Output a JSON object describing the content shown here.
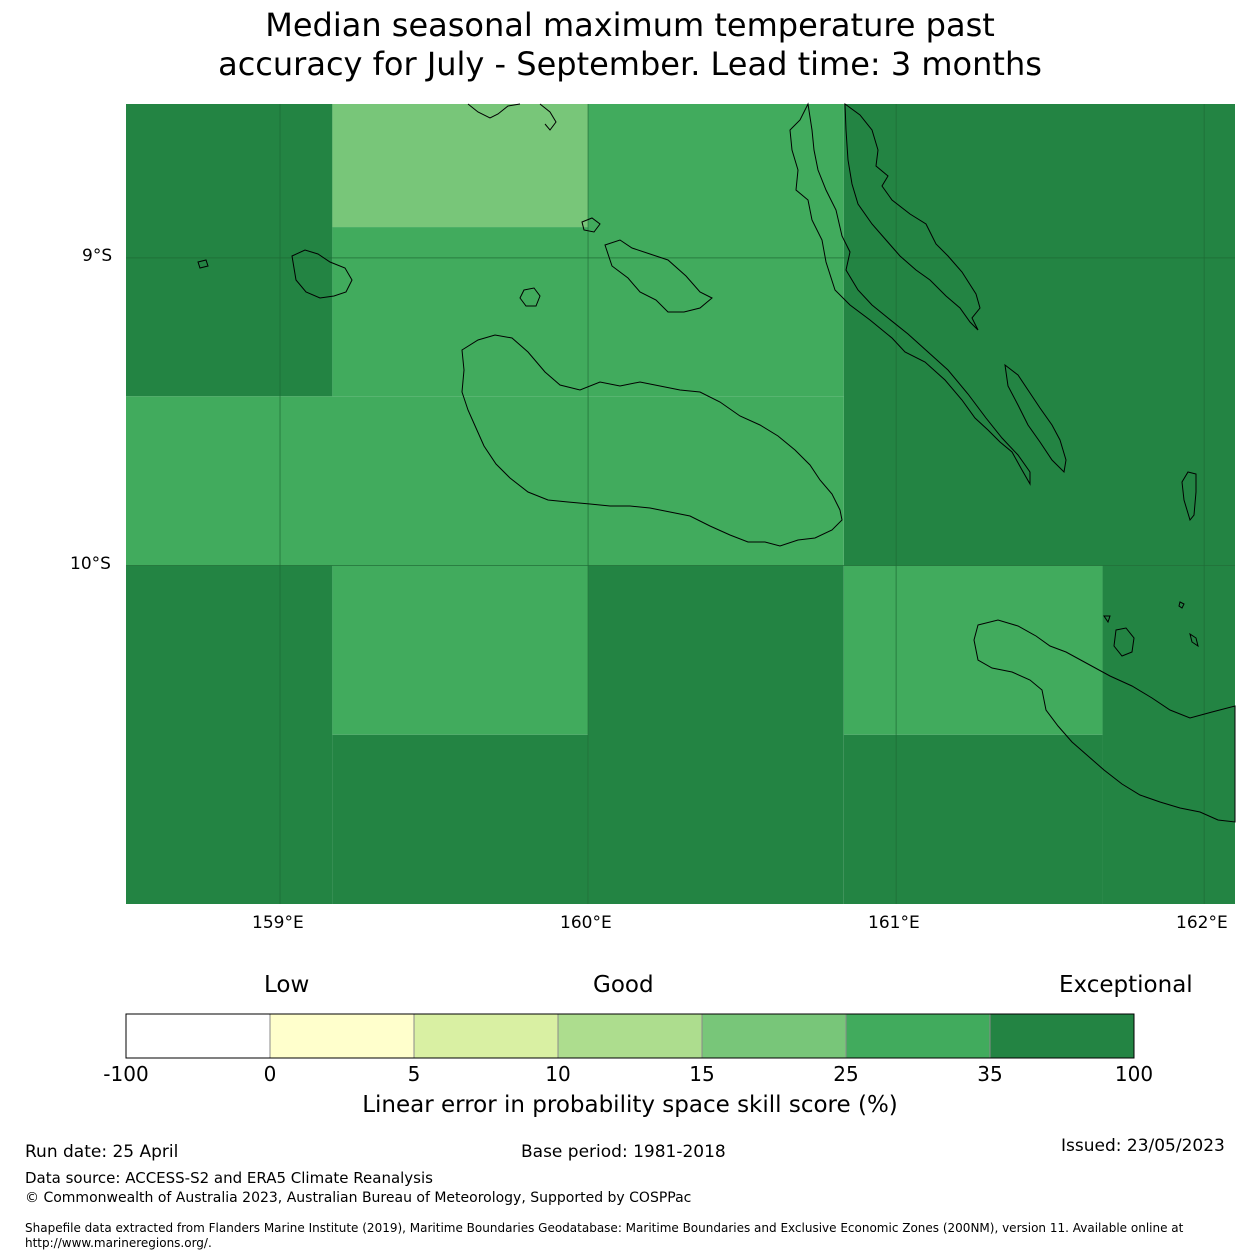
{
  "title": {
    "line1": "Median seasonal maximum temperature past",
    "line2": "accuracy for July - September. Lead time: 3 months"
  },
  "map": {
    "lon_range": [
      158.5,
      162.1
    ],
    "lat_range": [
      -11.1,
      -8.5
    ],
    "lon_ticks": [
      {
        "value": 159,
        "label": "159°E"
      },
      {
        "value": 160,
        "label": "160°E"
      },
      {
        "value": 161,
        "label": "161°E"
      },
      {
        "value": 162,
        "label": "162°E"
      }
    ],
    "lat_ticks": [
      {
        "value": -9,
        "label": "9°S"
      },
      {
        "value": -10,
        "label": "10°S"
      }
    ],
    "grid_cells": [
      {
        "lon0": 158.5,
        "lon1": 159.17,
        "lat0": -9.45,
        "lat1": -8.5,
        "category": "35 to 100"
      },
      {
        "lon0": 159.17,
        "lon1": 160.0,
        "lat0": -8.9,
        "lat1": -8.5,
        "category": "15 to 25"
      },
      {
        "lon0": 160.0,
        "lon1": 160.83,
        "lat0": -9.45,
        "lat1": -8.5,
        "category": "25 to 35"
      },
      {
        "lon0": 159.17,
        "lon1": 160.0,
        "lat0": -9.45,
        "lat1": -8.9,
        "category": "25 to 35"
      },
      {
        "lon0": 160.83,
        "lon1": 162.1,
        "lat0": -10.0,
        "lat1": -8.5,
        "category": "35 to 100"
      },
      {
        "lon0": 158.5,
        "lon1": 160.83,
        "lat0": -10.0,
        "lat1": -9.45,
        "category": "25 to 35"
      },
      {
        "lon0": 158.5,
        "lon1": 159.17,
        "lat0": -11.1,
        "lat1": -10.0,
        "category": "35 to 100"
      },
      {
        "lon0": 159.17,
        "lon1": 160.0,
        "lat0": -10.55,
        "lat1": -10.0,
        "category": "25 to 35"
      },
      {
        "lon0": 159.17,
        "lon1": 160.0,
        "lat0": -11.1,
        "lat1": -10.55,
        "category": "35 to 100"
      },
      {
        "lon0": 160.0,
        "lon1": 160.83,
        "lat0": -11.1,
        "lat1": -10.0,
        "category": "35 to 100"
      },
      {
        "lon0": 160.83,
        "lon1": 161.67,
        "lat0": -10.55,
        "lat1": -10.0,
        "category": "25 to 35"
      },
      {
        "lon0": 160.83,
        "lon1": 161.67,
        "lat0": -11.1,
        "lat1": -10.55,
        "category": "35 to 100"
      },
      {
        "lon0": 161.67,
        "lon1": 162.1,
        "lat0": -11.1,
        "lat1": -10.0,
        "category": "35 to 100"
      }
    ]
  },
  "legend": {
    "headings": {
      "low": "Low",
      "good": "Good",
      "exceptional": "Exceptional"
    },
    "bins": [
      {
        "from": -100,
        "to": 0,
        "color": "#ffffff"
      },
      {
        "from": 0,
        "to": 5,
        "color": "#ffffcc"
      },
      {
        "from": 5,
        "to": 10,
        "color": "#d9f0a3"
      },
      {
        "from": 10,
        "to": 15,
        "color": "#addd8e"
      },
      {
        "from": 15,
        "to": 25,
        "color": "#78c679"
      },
      {
        "from": 25,
        "to": 35,
        "color": "#41ab5d"
      },
      {
        "from": 35,
        "to": 100,
        "color": "#238443"
      }
    ],
    "tick_labels": [
      "-100",
      "0",
      "5",
      "10",
      "15",
      "25",
      "35",
      "100"
    ],
    "axis_label": "Linear error in probability space skill score (%)"
  },
  "footer": {
    "run_date": "Run date: 25 April",
    "base_period": "Base period: 1981-2018",
    "issued": "Issued: 23/05/2023",
    "data_source": "Data source: ACCESS-S2 and ERA5 Climate Reanalysis",
    "copyright": "© Commonwealth of Australia 2023, Australian Bureau of Meteorology, Supported by COSPPac",
    "shapefile": "Shapefile data extracted from Flanders Marine Institute (2019), Maritime Boundaries Geodatabase: Maritime Boundaries and Exclusive Economic Zones (200NM), version 11. Available online at http://www.marineregions.org/."
  },
  "colors": {
    "gridline": "#1e6b35",
    "coastline": "#000000"
  }
}
